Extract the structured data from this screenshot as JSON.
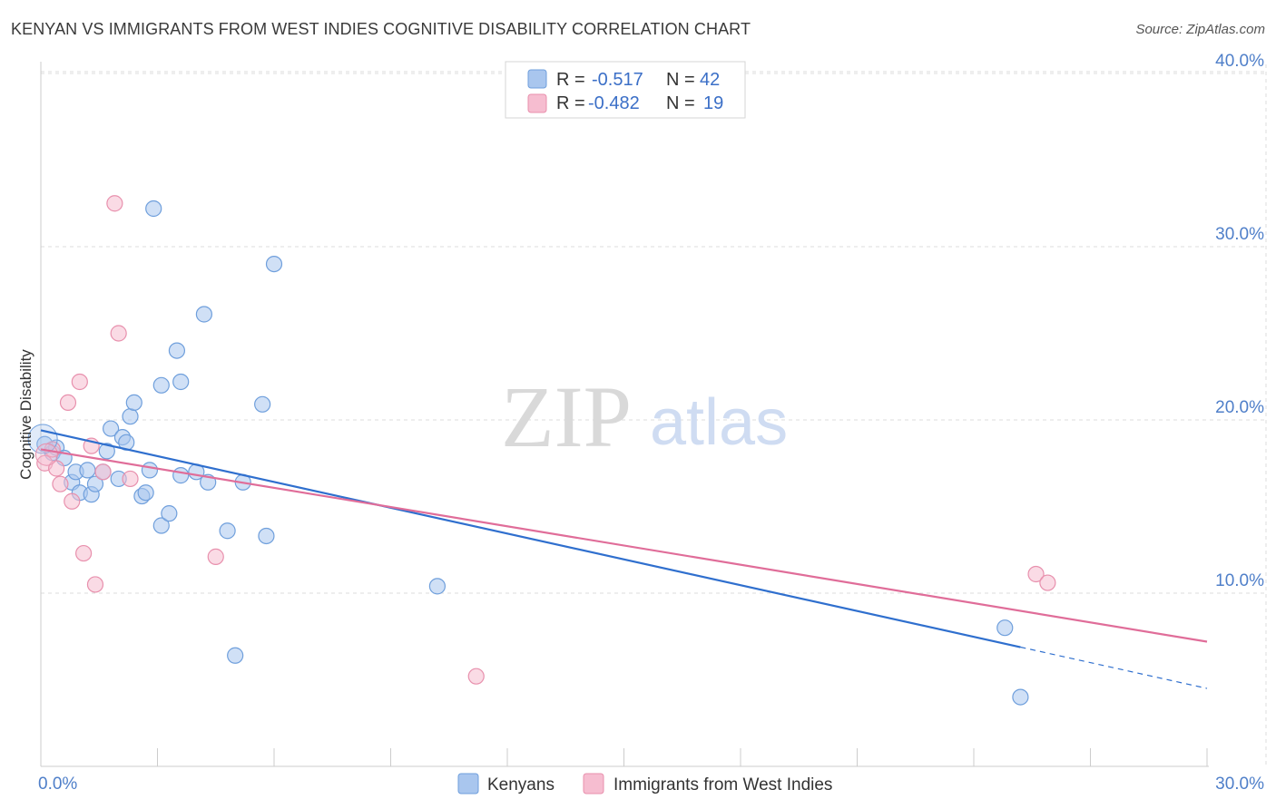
{
  "title": "KENYAN VS IMMIGRANTS FROM WEST INDIES COGNITIVE DISABILITY CORRELATION CHART",
  "source": "Source: ZipAtlas.com",
  "watermark": {
    "zip": "ZIP",
    "atlas": "atlas"
  },
  "chart_data": {
    "type": "scatter",
    "title": "KENYAN VS IMMIGRANTS FROM WEST INDIES COGNITIVE DISABILITY CORRELATION CHART",
    "xlabel": "",
    "ylabel": "Cognitive Disability",
    "xlim": [
      0,
      30
    ],
    "ylim": [
      0,
      41
    ],
    "x_tick_labels": [
      {
        "value": 0,
        "label": "0.0%"
      },
      {
        "value": 30,
        "label": "30.0%"
      }
    ],
    "y_ticks": [
      {
        "value": 10,
        "label": "10.0%"
      },
      {
        "value": 20,
        "label": "20.0%"
      },
      {
        "value": 30,
        "label": "30.0%"
      },
      {
        "value": 40,
        "label": "40.0%"
      }
    ],
    "x_minor_ticks": [
      3,
      6,
      9,
      12,
      15,
      18,
      21,
      24,
      27,
      30
    ],
    "grid": true,
    "legend_position": "top-center",
    "series": [
      {
        "name": "Kenyans",
        "color": "#a9c6ee",
        "stroke": "#6f9fdc",
        "line_color": "#2f6fce",
        "R": "-0.517",
        "N": "42",
        "regression": {
          "x0": 0,
          "y0": 19.4,
          "x1": 30,
          "y1": 4.5,
          "solid_until": 25.2
        },
        "points": [
          [
            0.1,
            18.6
          ],
          [
            0.3,
            18.1
          ],
          [
            0.4,
            18.4
          ],
          [
            0.6,
            17.8
          ],
          [
            0.8,
            16.4
          ],
          [
            0.9,
            17.0
          ],
          [
            1.0,
            15.8
          ],
          [
            1.2,
            17.1
          ],
          [
            1.3,
            15.7
          ],
          [
            1.4,
            16.3
          ],
          [
            1.6,
            17.0
          ],
          [
            1.7,
            18.2
          ],
          [
            1.8,
            19.5
          ],
          [
            2.0,
            16.6
          ],
          [
            2.1,
            19.0
          ],
          [
            2.2,
            18.7
          ],
          [
            2.3,
            20.2
          ],
          [
            2.4,
            21.0
          ],
          [
            2.6,
            15.6
          ],
          [
            2.7,
            15.8
          ],
          [
            2.8,
            17.1
          ],
          [
            2.9,
            32.2
          ],
          [
            3.1,
            13.9
          ],
          [
            3.1,
            22.0
          ],
          [
            3.3,
            14.6
          ],
          [
            3.5,
            24.0
          ],
          [
            3.6,
            22.2
          ],
          [
            3.6,
            16.8
          ],
          [
            4.0,
            17.0
          ],
          [
            4.2,
            26.1
          ],
          [
            4.3,
            16.4
          ],
          [
            4.8,
            13.6
          ],
          [
            5.0,
            6.4
          ],
          [
            5.2,
            16.4
          ],
          [
            5.7,
            20.9
          ],
          [
            5.8,
            13.3
          ],
          [
            6.0,
            29.0
          ],
          [
            10.2,
            10.4
          ],
          [
            24.8,
            8.0
          ],
          [
            25.2,
            4.0
          ]
        ]
      },
      {
        "name": "Immigrants from West Indies",
        "color": "#f6bdd0",
        "stroke": "#e890ad",
        "line_color": "#e06d99",
        "R": "-0.482",
        "N": "19",
        "regression": {
          "x0": 0,
          "y0": 18.3,
          "x1": 30,
          "y1": 7.2,
          "solid_until": 30
        },
        "points": [
          [
            0.1,
            17.5
          ],
          [
            0.3,
            18.3
          ],
          [
            0.4,
            17.2
          ],
          [
            0.5,
            16.3
          ],
          [
            0.7,
            21.0
          ],
          [
            0.8,
            15.3
          ],
          [
            1.0,
            22.2
          ],
          [
            1.1,
            12.3
          ],
          [
            1.3,
            18.5
          ],
          [
            1.4,
            10.5
          ],
          [
            1.6,
            17.0
          ],
          [
            1.9,
            32.5
          ],
          [
            2.0,
            25.0
          ],
          [
            2.3,
            16.6
          ],
          [
            4.5,
            12.1
          ],
          [
            11.2,
            5.2
          ],
          [
            25.6,
            11.1
          ],
          [
            25.9,
            10.6
          ]
        ]
      }
    ]
  },
  "legend": {
    "r_label": "R =",
    "n_label": "N =",
    "bottom": [
      "Kenyans",
      "Immigrants from West Indies"
    ]
  }
}
